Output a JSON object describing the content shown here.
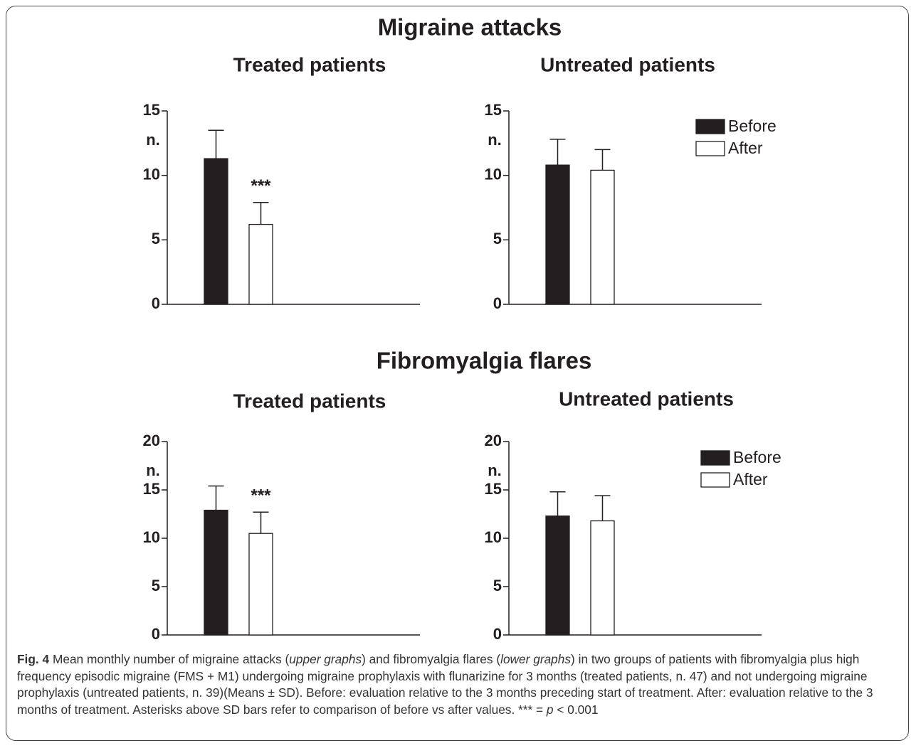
{
  "sections": [
    "Migraine attacks",
    "Fibromyalgia flares"
  ],
  "chart_data": [
    {
      "type": "bar",
      "title": "Treated patients",
      "ylabel": "n.",
      "categories": [
        null
      ],
      "series": [
        {
          "color": "#231f20",
          "values": [
            11.3
          ],
          "errors": [
            2.2
          ]
        },
        {
          "color": "#ffffff",
          "values": [
            6.2
          ],
          "errors": [
            1.7
          ],
          "annotation": "***"
        }
      ],
      "ylim": [
        0,
        15
      ],
      "yticks": [
        0,
        5,
        10,
        15
      ]
    },
    {
      "type": "bar",
      "title": "Untreated patients",
      "ylabel": "n.",
      "categories": [
        null
      ],
      "series": [
        {
          "name": "Before",
          "color": "#231f20",
          "values": [
            10.8
          ],
          "errors": [
            2.0
          ]
        },
        {
          "name": "After",
          "color": "#ffffff",
          "values": [
            10.4
          ],
          "errors": [
            1.6
          ]
        }
      ],
      "ylim": [
        0,
        15
      ],
      "yticks": [
        0,
        5,
        10,
        15
      ],
      "legend": "upper right"
    },
    {
      "type": "bar",
      "title": "Treated patients",
      "ylabel": "n.",
      "categories": [
        null
      ],
      "series": [
        {
          "color": "#231f20",
          "values": [
            12.9
          ],
          "errors": [
            2.5
          ]
        },
        {
          "color": "#ffffff",
          "values": [
            10.5
          ],
          "errors": [
            2.2
          ],
          "annotation": "***"
        }
      ],
      "ylim": [
        0,
        20
      ],
      "yticks": [
        0,
        5,
        10,
        15,
        20
      ]
    },
    {
      "type": "bar",
      "title": "Untreated patients",
      "ylabel": "n.",
      "categories": [
        null
      ],
      "series": [
        {
          "name": "Before",
          "color": "#231f20",
          "values": [
            12.3
          ],
          "errors": [
            2.5
          ]
        },
        {
          "name": "After",
          "color": "#ffffff",
          "values": [
            11.8
          ],
          "errors": [
            2.6
          ]
        }
      ],
      "ylim": [
        0,
        20
      ],
      "yticks": [
        0,
        5,
        10,
        15,
        20
      ],
      "legend": "upper right"
    }
  ],
  "caption": {
    "label": "Fig. 4",
    "segments": [
      " Mean monthly number of migraine attacks (",
      "upper graphs",
      ") and fibromyalgia flares (",
      "lower graphs",
      ") in two groups of patients with fibromyalgia plus high frequency episodic migraine (FMS + M1) undergoing migraine prophylaxis with flunarizine for 3 months (treated patients, n. 47) and not undergoing migraine prophylaxis (untreated patients, n. 39)(Means ± SD). Before: evaluation relative to the 3 months preceding start of treatment. After: evaluation relative to the 3 months of treatment. Asterisks above SD bars refer to comparison of before vs after values. *** = ",
      "p",
      " < 0.001"
    ]
  }
}
